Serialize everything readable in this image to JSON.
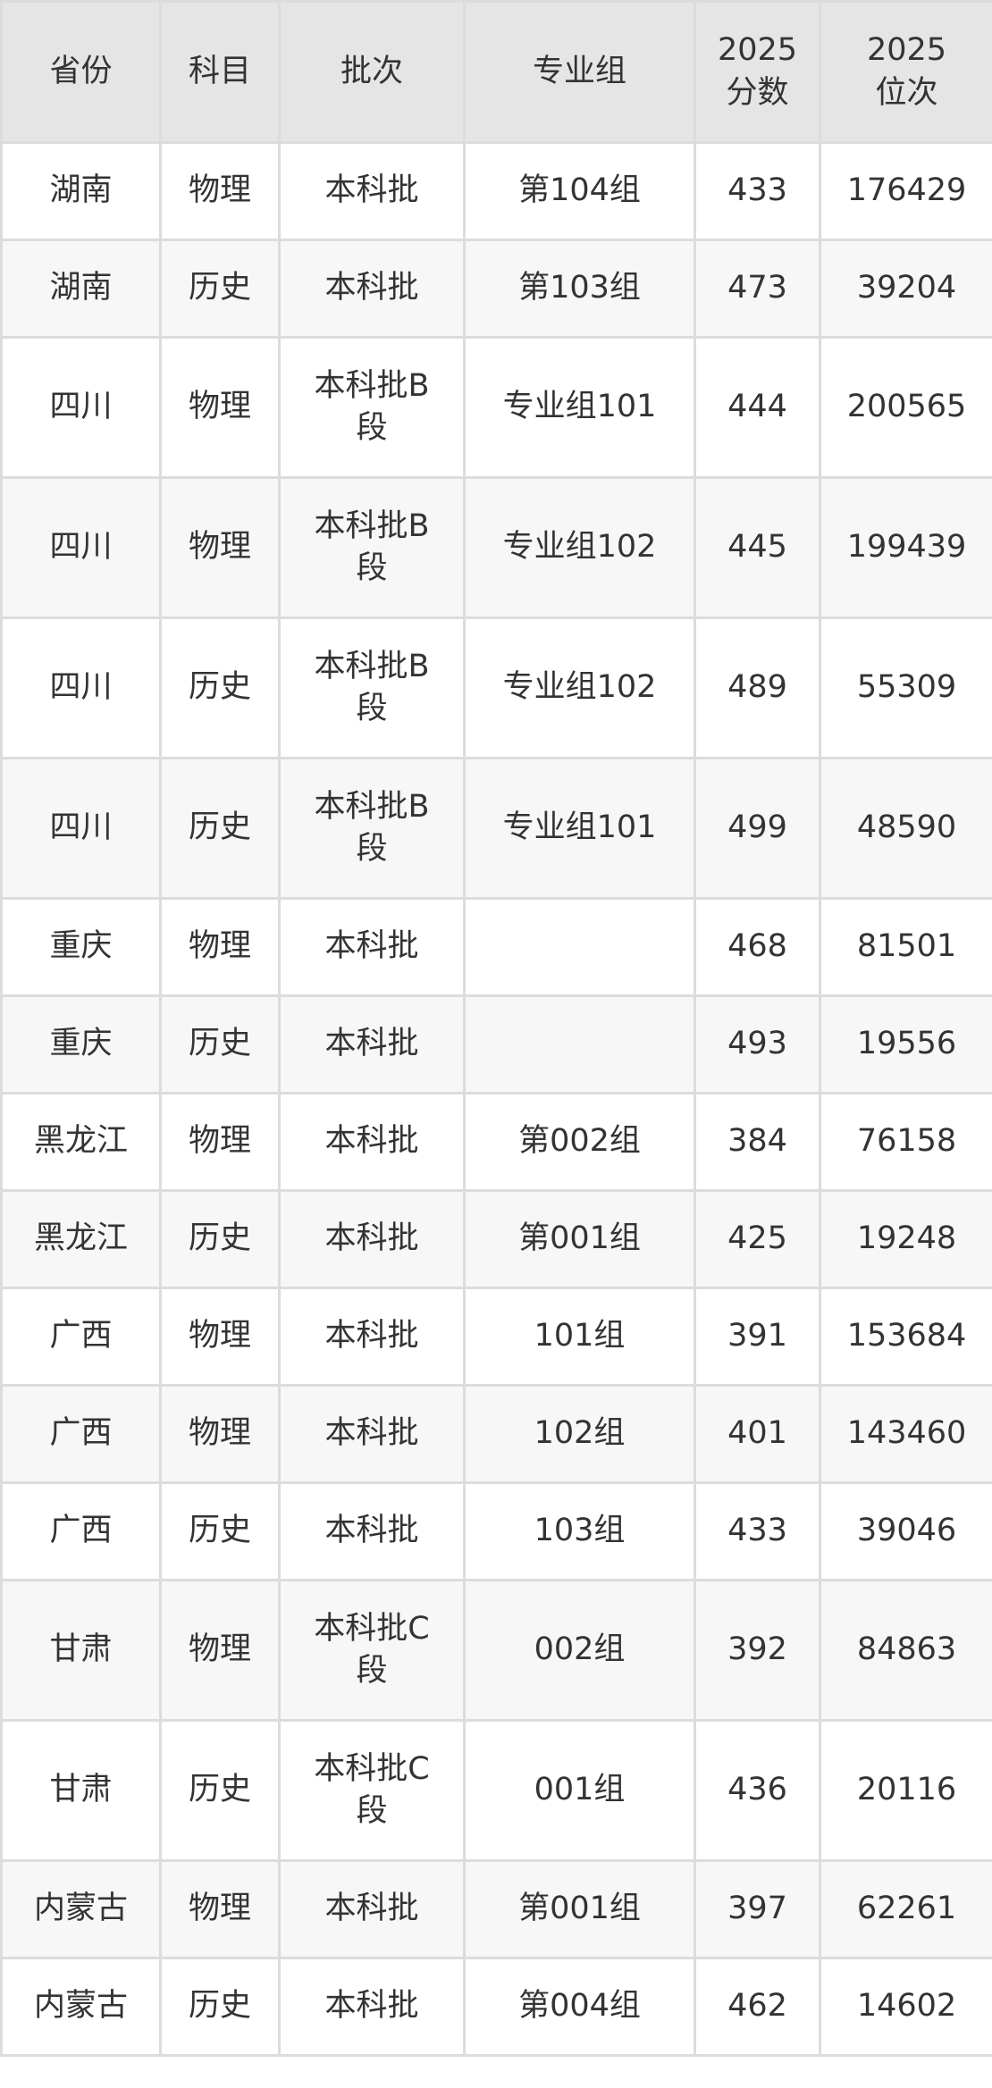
{
  "headers": [
    "省份",
    "科目",
    "批次",
    "专业组",
    "2025分数",
    "2025位次"
  ],
  "rows": [
    [
      "湖南",
      "物理",
      "本科批",
      "第104组",
      "433",
      "176429"
    ],
    [
      "湖南",
      "历史",
      "本科批",
      "第103组",
      "473",
      "39204"
    ],
    [
      "四川",
      "物理",
      "本科批B段",
      "专业组101",
      "444",
      "200565"
    ],
    [
      "四川",
      "物理",
      "本科批B段",
      "专业组102",
      "445",
      "199439"
    ],
    [
      "四川",
      "历史",
      "本科批B段",
      "专业组102",
      "489",
      "55309"
    ],
    [
      "四川",
      "历史",
      "本科批B段",
      "专业组101",
      "499",
      "48590"
    ],
    [
      "重庆",
      "物理",
      "本科批",
      "",
      "468",
      "81501"
    ],
    [
      "重庆",
      "历史",
      "本科批",
      "",
      "493",
      "19556"
    ],
    [
      "黑龙江",
      "物理",
      "本科批",
      "第002组",
      "384",
      "76158"
    ],
    [
      "黑龙江",
      "历史",
      "本科批",
      "第001组",
      "425",
      "19248"
    ],
    [
      "广西",
      "物理",
      "本科批",
      "101组",
      "391",
      "153684"
    ],
    [
      "广西",
      "物理",
      "本科批",
      "102组",
      "401",
      "143460"
    ],
    [
      "广西",
      "历史",
      "本科批",
      "103组",
      "433",
      "39046"
    ],
    [
      "甘肃",
      "物理",
      "本科批C段",
      "002组",
      "392",
      "84863"
    ],
    [
      "甘肃",
      "历史",
      "本科批C段",
      "001组",
      "436",
      "20116"
    ],
    [
      "内蒙古",
      "物理",
      "本科批",
      "第001组",
      "397",
      "62261"
    ],
    [
      "内蒙古",
      "历史",
      "本科批",
      "第004组",
      "462",
      "14602"
    ]
  ]
}
